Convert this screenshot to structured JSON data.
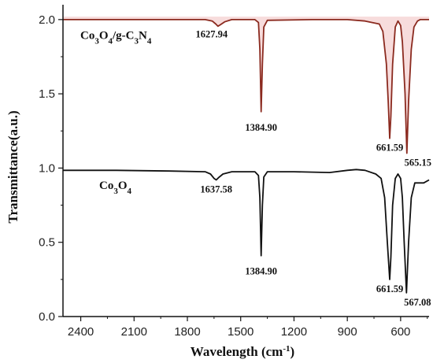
{
  "chart_data": {
    "type": "line",
    "xlabel": "Wavelength (cm",
    "xlabel_sup": "-1",
    "xlabel_close": ")",
    "ylabel": "Transmittance(a.u.)",
    "xlim": [
      2500,
      440
    ],
    "ylim": [
      0.0,
      2.1
    ],
    "x_reversed": true,
    "x_ticks": [
      2400,
      2100,
      1800,
      1500,
      1200,
      900,
      600
    ],
    "x_tick_labels": [
      "2400",
      "2100",
      "1800",
      "1500",
      "1200",
      "900",
      "600"
    ],
    "y_ticks": [
      0.0,
      0.5,
      1.0,
      1.5,
      2.0
    ],
    "y_tick_labels": [
      "0.0",
      "0.5",
      "1.0",
      "1.5",
      "2.0"
    ],
    "series": [
      {
        "name_parts": [
          "Co",
          "3",
          "O",
          "4",
          "/g-C",
          "3",
          "N",
          "4"
        ],
        "color": "#8b2a1f",
        "fill": "#f7dcdc",
        "baseline": 2.0,
        "x": [
          2500,
          2000,
          1700,
          1660,
          1640,
          1627.94,
          1615,
          1590,
          1550,
          1420,
          1400,
          1392,
          1384.9,
          1378,
          1370,
          1350,
          1100,
          900,
          800,
          720,
          700,
          680,
          670,
          661.59,
          655,
          645,
          630,
          615,
          600,
          590,
          575,
          565.15,
          555,
          540,
          525,
          505,
          490,
          470,
          440
        ],
        "y": [
          2.0,
          2.0,
          2.0,
          1.99,
          1.97,
          1.955,
          1.965,
          1.985,
          2.0,
          2.0,
          1.98,
          1.8,
          1.38,
          1.7,
          1.95,
          1.995,
          2.0,
          2.0,
          1.99,
          1.97,
          1.92,
          1.7,
          1.45,
          1.2,
          1.35,
          1.7,
          1.95,
          1.99,
          1.96,
          1.85,
          1.5,
          1.1,
          1.45,
          1.8,
          1.95,
          1.99,
          2.0,
          2.0,
          2.0
        ]
      },
      {
        "name_parts": [
          "Co",
          "3",
          "O",
          "4"
        ],
        "color": "#111111",
        "baseline": 0.98,
        "x": [
          2500,
          2200,
          1900,
          1700,
          1670,
          1650,
          1637.58,
          1625,
          1600,
          1550,
          1420,
          1400,
          1392,
          1384.9,
          1378,
          1370,
          1350,
          1200,
          1000,
          900,
          850,
          800,
          740,
          710,
          690,
          675,
          661.59,
          655,
          645,
          630,
          615,
          600,
          590,
          580,
          567.08,
          555,
          540,
          520,
          500,
          470,
          440
        ],
        "y": [
          0.985,
          0.985,
          0.98,
          0.975,
          0.96,
          0.93,
          0.92,
          0.935,
          0.96,
          0.975,
          0.975,
          0.95,
          0.8,
          0.41,
          0.75,
          0.94,
          0.975,
          0.975,
          0.97,
          0.985,
          0.99,
          0.985,
          0.96,
          0.93,
          0.8,
          0.5,
          0.25,
          0.4,
          0.75,
          0.93,
          0.96,
          0.93,
          0.8,
          0.5,
          0.16,
          0.5,
          0.8,
          0.9,
          0.9,
          0.9,
          0.92
        ]
      }
    ],
    "annotations": [
      {
        "text": "1627.94",
        "x": 1627.94,
        "y": 1.955,
        "pos": "below-left"
      },
      {
        "text": "1384.90",
        "x": 1384.9,
        "y": 1.38,
        "pos": "below"
      },
      {
        "text": "661.59",
        "x": 661.59,
        "y": 1.2,
        "pos": "below"
      },
      {
        "text": "565.15",
        "x": 565.15,
        "y": 1.1,
        "pos": "below-right"
      },
      {
        "text": "1637.58",
        "x": 1637.58,
        "y": 0.92,
        "pos": "below"
      },
      {
        "text": "1384.90",
        "x": 1384.9,
        "y": 0.41,
        "pos": "below"
      },
      {
        "text": "661.59",
        "x": 661.59,
        "y": 0.25,
        "pos": "below"
      },
      {
        "text": "567.08",
        "x": 567.08,
        "y": 0.16,
        "pos": "below-right"
      }
    ]
  }
}
